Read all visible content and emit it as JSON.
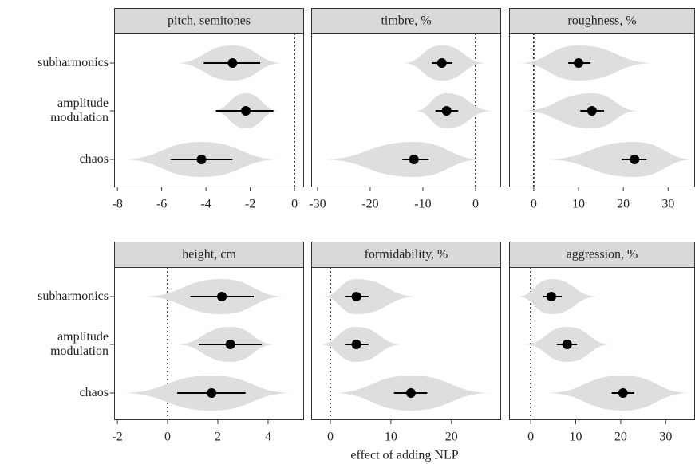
{
  "categories": [
    "subharmonics",
    "amplitude modulation",
    "chaos"
  ],
  "xlabel": "effect of adding NLP",
  "chart_data": [
    {
      "type": "violin",
      "title": "pitch, semitones",
      "xlim": [
        -8.15,
        0.43
      ],
      "xticks": [
        -8,
        -6,
        -4,
        -2,
        0
      ],
      "reference_line": 0,
      "values": [
        -2.8,
        -2.2,
        -4.2
      ],
      "intervals": [
        [
          -4.1,
          -1.55
        ],
        [
          -3.55,
          -0.95
        ],
        [
          -5.6,
          -2.8
        ]
      ],
      "violin_ranges": [
        [
          -5.4,
          -0.5
        ],
        [
          -3.7,
          -0.7
        ],
        [
          -7.8,
          -0.6
        ]
      ]
    },
    {
      "type": "violin",
      "title": "timbre, %",
      "xlim": [
        -31.2,
        4.85
      ],
      "xticks": [
        -30,
        -20,
        -10,
        0
      ],
      "reference_line": 0,
      "values": [
        -6.4,
        -5.5,
        -11.7
      ],
      "intervals": [
        [
          -8.3,
          -4.4
        ],
        [
          -7.6,
          -3.3
        ],
        [
          -13.9,
          -8.9
        ]
      ],
      "violin_ranges": [
        [
          -13.8,
          2.1
        ],
        [
          -11.5,
          3.3
        ],
        [
          -29.4,
          1.5
        ]
      ]
    },
    {
      "type": "violin",
      "title": "roughness, %",
      "xlim": [
        -5.5,
        36
      ],
      "xticks": [
        0,
        10,
        20,
        30
      ],
      "reference_line": 0,
      "values": [
        10,
        13,
        22.5
      ],
      "intervals": [
        [
          7.7,
          12.7
        ],
        [
          10.4,
          15.7
        ],
        [
          19.6,
          25.2
        ]
      ],
      "violin_ranges": [
        [
          -3.4,
          27
        ],
        [
          -2.7,
          23.5
        ],
        [
          2.3,
          36
        ]
      ]
    },
    {
      "type": "violin",
      "title": "height, cm",
      "xlim": [
        -2.13,
        5.43
      ],
      "xticks": [
        -2,
        0,
        2,
        4
      ],
      "reference_line": 0,
      "values": [
        2.16,
        2.5,
        1.75
      ],
      "intervals": [
        [
          0.9,
          3.43
        ],
        [
          1.24,
          3.75
        ],
        [
          0.38,
          3.1
        ]
      ],
      "violin_ranges": [
        [
          -1,
          4.7
        ],
        [
          0.3,
          4.3
        ],
        [
          -1.85,
          5
        ]
      ]
    },
    {
      "type": "violin",
      "title": "formidability, %",
      "xlim": [
        -3.16,
        28.2
      ],
      "xticks": [
        0,
        10,
        20
      ],
      "reference_line": 0,
      "values": [
        4.3,
        4.3,
        13.3
      ],
      "intervals": [
        [
          2.4,
          6.3
        ],
        [
          2.4,
          6.3
        ],
        [
          10.5,
          16
        ]
      ],
      "violin_ranges": [
        [
          -1.3,
          14.5
        ],
        [
          -1.8,
          12
        ],
        [
          0.3,
          26.7
        ]
      ]
    },
    {
      "type": "violin",
      "title": "aggression, %",
      "xlim": [
        -4.8,
        36.5
      ],
      "xticks": [
        0,
        10,
        20,
        30
      ],
      "reference_line": 0,
      "values": [
        4.6,
        8.1,
        20.5
      ],
      "intervals": [
        [
          2.7,
          6.9
        ],
        [
          5.8,
          10.3
        ],
        [
          18,
          23
        ]
      ],
      "violin_ranges": [
        [
          -3,
          15
        ],
        [
          -1.5,
          18
        ],
        [
          3.4,
          35.6
        ]
      ]
    }
  ]
}
